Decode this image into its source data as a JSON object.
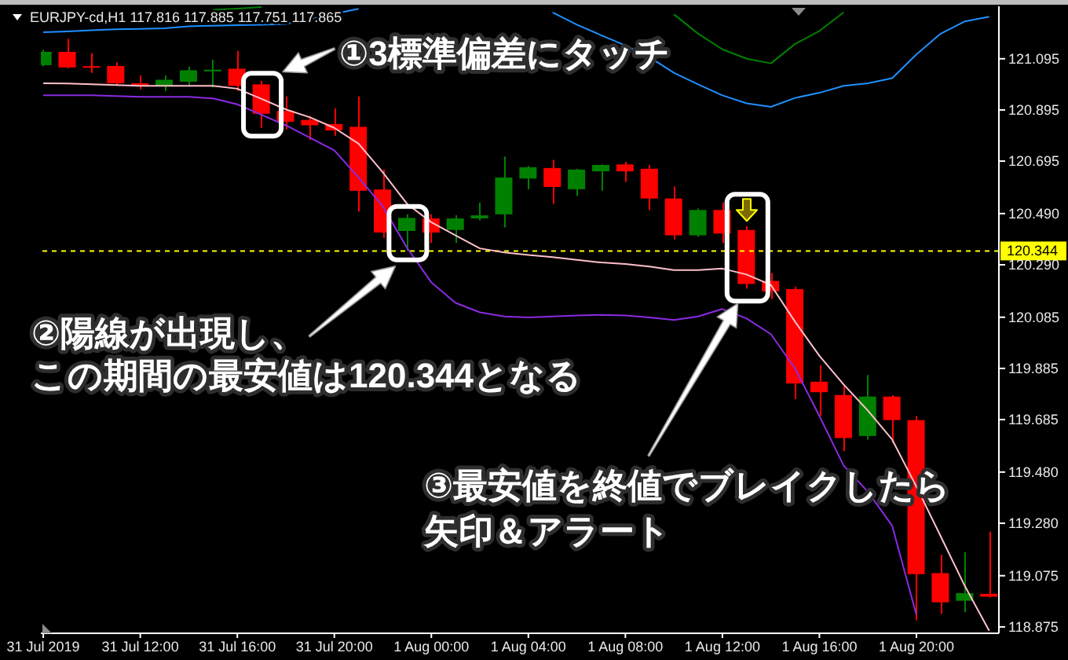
{
  "chart_data": {
    "type": "candlestick",
    "title": "EURJPY-cd,H1 117.816 117.885 117.751 117.865",
    "annotations": [
      {
        "text": "①3標準偏差にタッチ",
        "x": "2019-07-31T17:00",
        "y": 120.825
      },
      {
        "text": "②陽線が出現し、この期間の最安値は120.344となる",
        "x": "2019-07-31T23:00",
        "y": 120.344
      },
      "③最安値を終値でブレイクしたら矢印＆アラート"
    ],
    "x": [
      "2019-07-31T08:00",
      "2019-07-31T09:00",
      "2019-07-31T10:00",
      "2019-07-31T11:00",
      "2019-07-31T12:00",
      "2019-07-31T13:00",
      "2019-07-31T14:00",
      "2019-07-31T15:00",
      "2019-07-31T16:00",
      "2019-07-31T17:00",
      "2019-07-31T18:00",
      "2019-07-31T19:00",
      "2019-07-31T20:00",
      "2019-07-31T21:00",
      "2019-07-31T22:00",
      "2019-07-31T23:00",
      "2019-08-01T00:00",
      "2019-08-01T01:00",
      "2019-08-01T02:00",
      "2019-08-01T03:00",
      "2019-08-01T04:00",
      "2019-08-01T05:00",
      "2019-08-01T06:00",
      "2019-08-01T07:00",
      "2019-08-01T08:00",
      "2019-08-01T09:00",
      "2019-08-01T10:00",
      "2019-08-01T11:00",
      "2019-08-01T12:00",
      "2019-08-01T13:00",
      "2019-08-01T14:00",
      "2019-08-01T15:00",
      "2019-08-01T16:00",
      "2019-08-01T17:00",
      "2019-08-01T18:00",
      "2019-08-01T19:00",
      "2019-08-01T20:00",
      "2019-08-01T21:00",
      "2019-08-01T22:00",
      "2019-08-01T23:00"
    ],
    "xlim": [
      "2019-07-31T07:54",
      "2019-08-01T23:24"
    ],
    "xticks": [
      {
        "value": "2019-07-31T08:00",
        "label": "31 Jul 2019"
      },
      {
        "value": "2019-07-31T12:00",
        "label": "31 Jul 12:00"
      },
      {
        "value": "2019-07-31T16:00",
        "label": "31 Jul 16:00"
      },
      {
        "value": "2019-07-31T20:00",
        "label": "31 Jul 20:00"
      },
      {
        "value": "2019-08-01T00:00",
        "label": "1 Aug 00:00"
      },
      {
        "value": "2019-08-01T04:00",
        "label": "1 Aug 04:00"
      },
      {
        "value": "2019-08-01T08:00",
        "label": "1 Aug 08:00"
      },
      {
        "value": "2019-08-01T12:00",
        "label": "1 Aug 12:00"
      },
      {
        "value": "2019-08-01T16:00",
        "label": "1 Aug 16:00"
      },
      {
        "value": "2019-08-01T20:00",
        "label": "1 Aug 20:00"
      }
    ],
    "ylim": [
      118.85,
      121.3
    ],
    "yticks": [
      121.095,
      120.895,
      120.695,
      {
        "value": 120.49,
        "label": "120.490"
      },
      {
        "value": 120.29,
        "label": "120.290"
      },
      120.085,
      119.885,
      119.685,
      {
        "value": 119.48,
        "label": "119.480"
      },
      {
        "value": 119.28,
        "label": "119.280"
      },
      119.075,
      118.875
    ],
    "ohlc": [
      [
        121.07,
        121.13,
        121.065,
        121.122
      ],
      [
        121.122,
        121.173,
        121.058,
        121.061
      ],
      [
        121.066,
        121.116,
        121.04,
        121.062
      ],
      [
        121.067,
        121.081,
        120.989,
        120.999
      ],
      [
        120.999,
        121.03,
        120.975,
        120.989
      ],
      [
        120.989,
        121.03,
        120.969,
        121.013
      ],
      [
        121.005,
        121.064,
        120.989,
        121.05
      ],
      [
        121.048,
        121.091,
        120.983,
        121.052
      ],
      [
        121.056,
        121.126,
        120.969,
        120.989
      ],
      [
        120.995,
        121.009,
        120.825,
        120.88
      ],
      [
        120.891,
        120.948,
        120.819,
        120.849
      ],
      [
        120.856,
        120.872,
        120.778,
        120.835
      ],
      [
        120.84,
        120.901,
        120.794,
        120.815
      ],
      [
        120.829,
        120.948,
        120.498,
        120.579
      ],
      [
        120.584,
        120.662,
        120.395,
        120.416
      ],
      [
        120.422,
        120.487,
        120.344,
        120.473
      ],
      [
        120.471,
        120.487,
        120.375,
        120.416
      ],
      [
        120.426,
        120.483,
        120.375,
        120.471
      ],
      [
        120.471,
        120.533,
        120.463,
        120.483
      ],
      [
        120.487,
        120.713,
        120.436,
        120.631
      ],
      [
        120.627,
        120.676,
        120.585,
        120.671
      ],
      [
        120.668,
        120.7,
        120.528,
        120.594
      ],
      [
        120.585,
        120.665,
        120.559,
        120.662
      ],
      [
        120.655,
        120.682,
        120.579,
        120.68
      ],
      [
        120.682,
        120.692,
        120.614,
        120.655
      ],
      [
        120.665,
        120.68,
        120.504,
        120.549
      ],
      [
        120.549,
        120.596,
        120.389,
        120.405
      ],
      [
        120.405,
        120.51,
        120.4,
        120.504
      ],
      [
        120.504,
        120.533,
        120.375,
        120.412
      ],
      [
        120.426,
        120.44,
        120.197,
        120.215
      ],
      [
        120.227,
        120.258,
        120.156,
        120.186
      ],
      [
        120.195,
        120.205,
        119.765,
        119.826
      ],
      [
        119.833,
        119.898,
        119.699,
        119.792
      ],
      [
        119.781,
        119.816,
        119.562,
        119.613
      ],
      [
        119.621,
        119.859,
        119.607,
        119.775
      ],
      [
        119.775,
        119.78,
        119.593,
        119.683
      ],
      [
        119.683,
        119.699,
        118.901,
        119.081
      ],
      [
        119.085,
        119.157,
        118.926,
        118.971
      ],
      [
        118.977,
        119.167,
        118.932,
        119.007
      ],
      [
        119.004,
        119.247,
        118.99,
        118.993
      ]
    ],
    "colors": [
      "#008000",
      "#ff0000",
      "#ff0000",
      "#ff0000",
      "#ff0000",
      "#008000",
      "#008000",
      "#008000",
      "#ff0000",
      "#ff0000",
      "#ff0000",
      "#ff0000",
      "#ff0000",
      "#ff0000",
      "#ff0000",
      "#008000",
      "#ff0000",
      "#008000",
      "#008000",
      "#008000",
      "#008000",
      "#ff0000",
      "#008000",
      "#008000",
      "#ff0000",
      "#ff0000",
      "#ff0000",
      "#008000",
      "#ff0000",
      "#ff0000",
      "#ff0000",
      "#ff0000",
      "#ff0000",
      "#ff0000",
      "#008000",
      "#ff0000",
      "#ff0000",
      "#ff0000",
      "#008000",
      "#ff0000"
    ],
    "series": [
      {
        "type": "line",
        "color": "#ffc0cb",
        "values": [
          120.999,
          120.998,
          120.995,
          120.992,
          120.989,
          120.989,
          120.989,
          120.989,
          120.978,
          120.938,
          120.897,
          120.866,
          120.825,
          120.763,
          120.651,
          120.528,
          120.456,
          120.405,
          120.354,
          120.338,
          120.328,
          120.32,
          120.309,
          120.299,
          120.293,
          120.283,
          120.269,
          120.269,
          120.275,
          120.252,
          120.211,
          120.067,
          119.934,
          119.822,
          119.72,
          119.607,
          119.423,
          119.229,
          119.034,
          118.86
        ]
      },
      {
        "type": "line",
        "color": "#8a2be2",
        "values": [
          120.952,
          120.952,
          120.952,
          120.949,
          120.946,
          120.946,
          120.946,
          120.94,
          120.917,
          120.876,
          120.835,
          120.786,
          120.737,
          120.631,
          120.518,
          120.356,
          120.221,
          120.141,
          120.104,
          120.088,
          120.084,
          120.088,
          120.092,
          120.094,
          120.092,
          120.084,
          120.074,
          120.088,
          120.117,
          120.08,
          120.019,
          119.884,
          119.699,
          119.505,
          119.403,
          119.27,
          118.922,
          null,
          null,
          null
        ]
      },
      {
        "type": "line",
        "color": "#1e90ff",
        "values": [
          121.199,
          121.202,
          121.206,
          121.21,
          121.212,
          121.214,
          121.222,
          121.224,
          121.226,
          121.228,
          121.231,
          121.249,
          121.271,
          121.29,
          null,
          null,
          null,
          null,
          null,
          null,
          null,
          121.276,
          121.228,
          121.187,
          121.147,
          121.101,
          121.04,
          120.995,
          120.952,
          120.921,
          120.907,
          120.942,
          120.962,
          120.989,
          120.999,
          121.019,
          121.112,
          121.193,
          121.241,
          121.259
        ]
      },
      {
        "type": "line",
        "color": "#008000",
        "values": [
          null,
          null,
          null,
          null,
          null,
          null,
          null,
          121.286,
          121.291,
          121.297,
          null,
          null,
          null,
          null,
          null,
          null,
          null,
          null,
          null,
          null,
          null,
          null,
          null,
          null,
          null,
          null,
          121.269,
          121.193,
          121.132,
          121.095,
          121.077,
          121.153,
          121.204,
          121.276,
          null,
          null,
          null,
          null,
          null,
          null
        ]
      }
    ],
    "ref_lines": [
      {
        "axis": "y",
        "value": 120.344,
        "label": "120.344",
        "color": "#ffff00",
        "line_style": "dashed"
      }
    ]
  }
}
